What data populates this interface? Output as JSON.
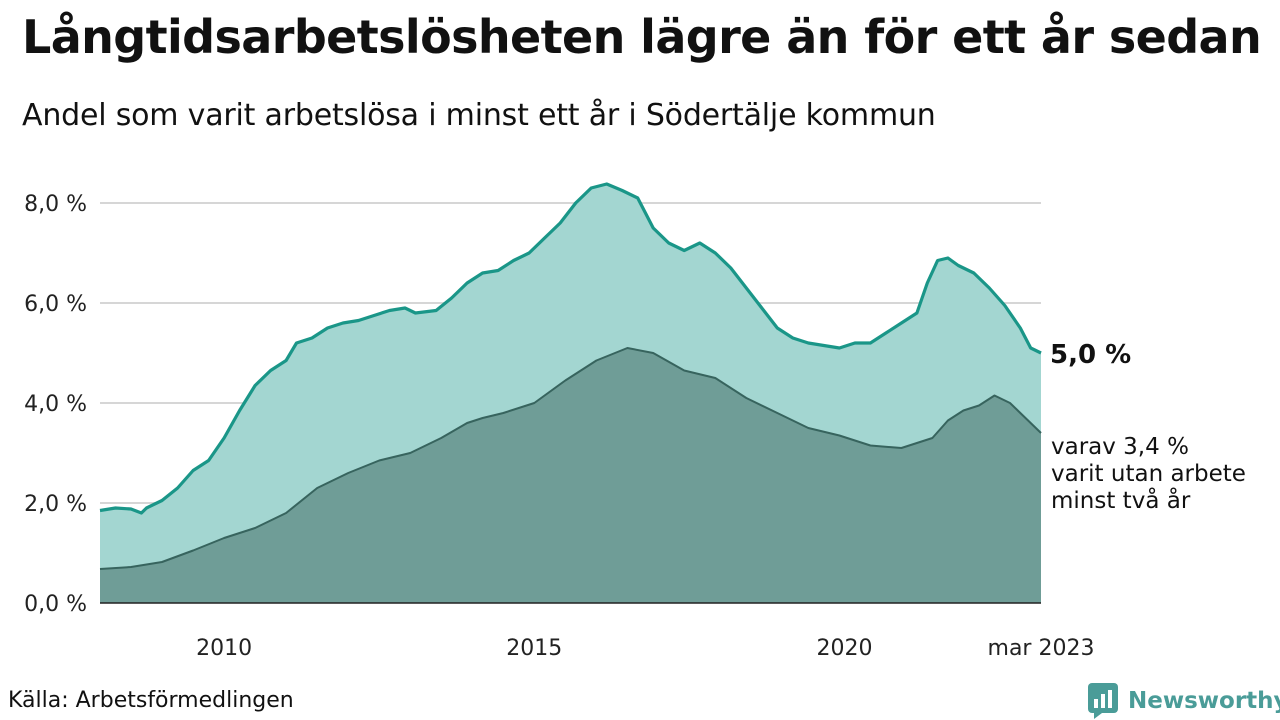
{
  "header": {
    "title": "Långtidsarbetslösheten lägre än för ett år sedan",
    "subtitle": "Andel som varit arbetslösa i minst ett år i Södertälje kommun"
  },
  "footer": {
    "source": "Källa: Arbetsförmedlingen",
    "brand": "Newsworthy"
  },
  "colors": {
    "total_fill": "#a3d6d1",
    "total_line": "#1a9688",
    "longterm_fill": "#6f9d97",
    "longterm_line": "#37645e",
    "grid": "#d6d6d6",
    "brand": "#4a9c98"
  },
  "chart_data": {
    "type": "area",
    "x_unit": "date",
    "x_start": "2008-01",
    "x_end": "2023-03",
    "xticks": [
      {
        "date": "2010-01",
        "label": "2010"
      },
      {
        "date": "2015-01",
        "label": "2015"
      },
      {
        "date": "2020-01",
        "label": "2020"
      },
      {
        "date": "2023-03",
        "label": "mar 2023"
      }
    ],
    "ylim": [
      0,
      8.8
    ],
    "yticks": [
      {
        "value": 0,
        "label": "0,0 %"
      },
      {
        "value": 2,
        "label": "2,0 %"
      },
      {
        "value": 4,
        "label": "4,0 %"
      },
      {
        "value": 6,
        "label": "6,0 %"
      },
      {
        "value": 8,
        "label": "8,0 %"
      }
    ],
    "grid": true,
    "series": [
      {
        "key": "total",
        "end_label": "5,0 %",
        "points": [
          [
            "2008-01",
            1.85
          ],
          [
            "2008-04",
            1.9
          ],
          [
            "2008-07",
            1.88
          ],
          [
            "2008-09",
            1.8
          ],
          [
            "2008-10",
            1.9
          ],
          [
            "2009-01",
            2.05
          ],
          [
            "2009-04",
            2.3
          ],
          [
            "2009-07",
            2.65
          ],
          [
            "2009-10",
            2.85
          ],
          [
            "2010-01",
            3.3
          ],
          [
            "2010-04",
            3.85
          ],
          [
            "2010-07",
            4.35
          ],
          [
            "2010-10",
            4.65
          ],
          [
            "2011-01",
            4.85
          ],
          [
            "2011-03",
            5.2
          ],
          [
            "2011-06",
            5.3
          ],
          [
            "2011-09",
            5.5
          ],
          [
            "2011-12",
            5.6
          ],
          [
            "2012-03",
            5.65
          ],
          [
            "2012-06",
            5.75
          ],
          [
            "2012-09",
            5.85
          ],
          [
            "2012-12",
            5.9
          ],
          [
            "2013-02",
            5.8
          ],
          [
            "2013-06",
            5.85
          ],
          [
            "2013-09",
            6.1
          ],
          [
            "2013-12",
            6.4
          ],
          [
            "2014-03",
            6.6
          ],
          [
            "2014-06",
            6.65
          ],
          [
            "2014-09",
            6.85
          ],
          [
            "2014-12",
            7.0
          ],
          [
            "2015-03",
            7.3
          ],
          [
            "2015-06",
            7.6
          ],
          [
            "2015-09",
            8.0
          ],
          [
            "2015-12",
            8.3
          ],
          [
            "2016-03",
            8.38
          ],
          [
            "2016-06",
            8.25
          ],
          [
            "2016-09",
            8.1
          ],
          [
            "2016-12",
            7.5
          ],
          [
            "2017-03",
            7.2
          ],
          [
            "2017-06",
            7.05
          ],
          [
            "2017-09",
            7.2
          ],
          [
            "2017-12",
            7.0
          ],
          [
            "2018-03",
            6.7
          ],
          [
            "2018-06",
            6.3
          ],
          [
            "2018-09",
            5.9
          ],
          [
            "2018-12",
            5.5
          ],
          [
            "2019-03",
            5.3
          ],
          [
            "2019-06",
            5.2
          ],
          [
            "2019-09",
            5.15
          ],
          [
            "2019-12",
            5.1
          ],
          [
            "2020-03",
            5.2
          ],
          [
            "2020-06",
            5.2
          ],
          [
            "2020-09",
            5.4
          ],
          [
            "2020-12",
            5.6
          ],
          [
            "2021-03",
            5.8
          ],
          [
            "2021-05",
            6.4
          ],
          [
            "2021-07",
            6.85
          ],
          [
            "2021-09",
            6.9
          ],
          [
            "2021-11",
            6.75
          ],
          [
            "2022-02",
            6.6
          ],
          [
            "2022-05",
            6.3
          ],
          [
            "2022-08",
            5.95
          ],
          [
            "2022-11",
            5.5
          ],
          [
            "2023-01",
            5.1
          ],
          [
            "2023-03",
            5.0
          ]
        ]
      },
      {
        "key": "longterm",
        "end_label": "varav 3,4 % varit utan arbete minst två år",
        "end_label_lines": [
          "varav 3,4 %",
          "varit utan arbete",
          "minst två år"
        ],
        "points": [
          [
            "2008-01",
            0.68
          ],
          [
            "2008-07",
            0.72
          ],
          [
            "2009-01",
            0.82
          ],
          [
            "2009-07",
            1.05
          ],
          [
            "2010-01",
            1.3
          ],
          [
            "2010-07",
            1.5
          ],
          [
            "2011-01",
            1.8
          ],
          [
            "2011-07",
            2.3
          ],
          [
            "2012-01",
            2.6
          ],
          [
            "2012-07",
            2.85
          ],
          [
            "2013-01",
            3.0
          ],
          [
            "2013-07",
            3.3
          ],
          [
            "2013-12",
            3.6
          ],
          [
            "2014-03",
            3.7
          ],
          [
            "2014-07",
            3.8
          ],
          [
            "2015-01",
            4.0
          ],
          [
            "2015-07",
            4.45
          ],
          [
            "2016-01",
            4.85
          ],
          [
            "2016-07",
            5.1
          ],
          [
            "2016-12",
            5.0
          ],
          [
            "2017-06",
            4.65
          ],
          [
            "2017-12",
            4.5
          ],
          [
            "2018-06",
            4.1
          ],
          [
            "2018-12",
            3.8
          ],
          [
            "2019-06",
            3.5
          ],
          [
            "2019-12",
            3.35
          ],
          [
            "2020-06",
            3.15
          ],
          [
            "2020-12",
            3.1
          ],
          [
            "2021-06",
            3.3
          ],
          [
            "2021-09",
            3.65
          ],
          [
            "2021-12",
            3.85
          ],
          [
            "2022-03",
            3.95
          ],
          [
            "2022-06",
            4.15
          ],
          [
            "2022-09",
            4.0
          ],
          [
            "2022-12",
            3.7
          ],
          [
            "2023-03",
            3.4
          ]
        ]
      }
    ]
  }
}
